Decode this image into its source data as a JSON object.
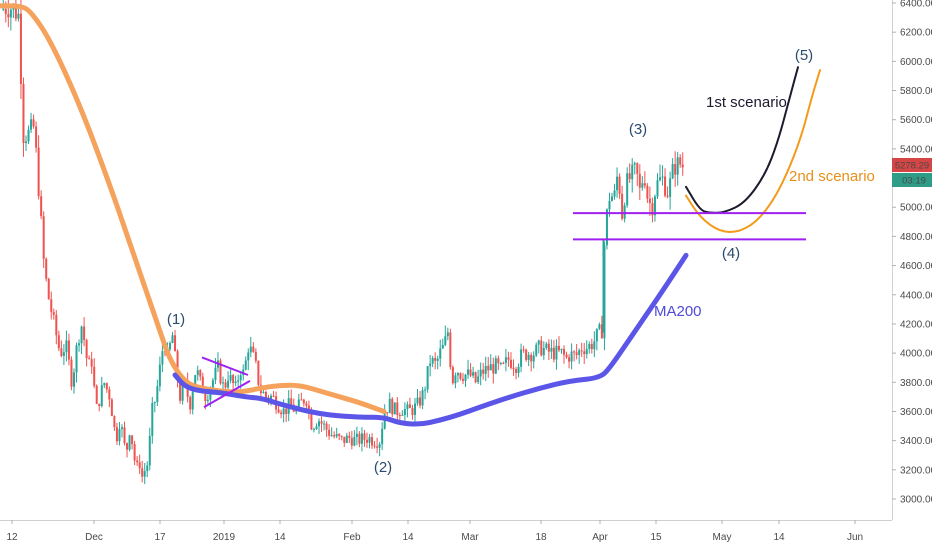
{
  "chart_data": {
    "type": "candlestick",
    "y_axis": {
      "ticks": [
        "6400.00",
        "6200.00",
        "6000.00",
        "5800.00",
        "5600.00",
        "5400.00",
        "5200.00",
        "5000.00",
        "4800.00",
        "4600.00",
        "4400.00",
        "4200.00",
        "4000.00",
        "3800.00",
        "3600.00",
        "3400.00",
        "3200.00",
        "3000.00"
      ],
      "range": [
        2900,
        6420
      ],
      "position": "right"
    },
    "x_axis": {
      "ticks": [
        "12",
        "Dec",
        "17",
        "2019",
        "14",
        "Feb",
        "14",
        "Mar",
        "18",
        "Apr",
        "15",
        "May",
        "14",
        "Jun"
      ]
    },
    "price_labels": {
      "last_price": "5278.29",
      "countdown": "03:19",
      "colors": {
        "last_price": "#d64545",
        "countdown": "#2e9c86"
      }
    },
    "wave_labels": [
      "(1)",
      "(2)",
      "(3)",
      "(4)",
      "(5)"
    ],
    "annotations": {
      "ma_label": "MA200",
      "scenario_1": "1st scenario",
      "scenario_2": "2nd scenario"
    },
    "levels": [
      4960,
      4780
    ],
    "candles": {
      "count": 270,
      "price_path": [
        [
          0,
          6350
        ],
        [
          8,
          6380
        ],
        [
          14,
          6360
        ],
        [
          20,
          6300
        ],
        [
          22,
          5500
        ],
        [
          28,
          5500
        ],
        [
          34,
          5550
        ],
        [
          38,
          5200
        ],
        [
          44,
          4600
        ],
        [
          48,
          4400
        ],
        [
          54,
          4200
        ],
        [
          60,
          4000
        ],
        [
          66,
          4050
        ],
        [
          72,
          3800
        ],
        [
          78,
          4100
        ],
        [
          82,
          4200
        ],
        [
          88,
          3900
        ],
        [
          92,
          3950
        ],
        [
          96,
          3600
        ],
        [
          104,
          3800
        ],
        [
          110,
          3700
        ],
        [
          116,
          3400
        ],
        [
          120,
          3550
        ],
        [
          126,
          3300
        ],
        [
          130,
          3500
        ],
        [
          136,
          3200
        ],
        [
          140,
          3250
        ],
        [
          142,
          3150
        ],
        [
          148,
          3250
        ],
        [
          152,
          3600
        ],
        [
          156,
          3700
        ],
        [
          160,
          3900
        ],
        [
          164,
          4100
        ],
        [
          168,
          3950
        ],
        [
          172,
          4150
        ],
        [
          176,
          3900
        ],
        [
          180,
          3700
        ],
        [
          184,
          3800
        ],
        [
          190,
          3650
        ],
        [
          196,
          3900
        ],
        [
          200,
          3800
        ],
        [
          206,
          3700
        ],
        [
          212,
          3800
        ],
        [
          218,
          3900
        ],
        [
          224,
          3750
        ],
        [
          228,
          3850
        ],
        [
          232,
          3800
        ],
        [
          236,
          3750
        ],
        [
          240,
          3900
        ],
        [
          244,
          3850
        ],
        [
          248,
          4050
        ],
        [
          252,
          4000
        ],
        [
          256,
          3900
        ],
        [
          260,
          3750
        ],
        [
          266,
          3700
        ],
        [
          272,
          3700
        ],
        [
          278,
          3650
        ],
        [
          284,
          3600
        ],
        [
          290,
          3650
        ],
        [
          296,
          3600
        ],
        [
          300,
          3650
        ],
        [
          306,
          3700
        ],
        [
          312,
          3500
        ],
        [
          318,
          3550
        ],
        [
          324,
          3500
        ],
        [
          330,
          3450
        ],
        [
          336,
          3420
        ],
        [
          342,
          3400
        ],
        [
          350,
          3420
        ],
        [
          356,
          3400
        ],
        [
          362,
          3410
        ],
        [
          368,
          3420
        ],
        [
          374,
          3400
        ],
        [
          380,
          3400
        ],
        [
          384,
          3600
        ],
        [
          390,
          3650
        ],
        [
          396,
          3600
        ],
        [
          402,
          3620
        ],
        [
          408,
          3600
        ],
        [
          414,
          3620
        ],
        [
          418,
          3650
        ],
        [
          422,
          3700
        ],
        [
          426,
          3800
        ],
        [
          430,
          3950
        ],
        [
          436,
          3920
        ],
        [
          440,
          4000
        ],
        [
          444,
          4050
        ],
        [
          448,
          4150
        ],
        [
          452,
          3800
        ],
        [
          456,
          3900
        ],
        [
          460,
          3860
        ],
        [
          466,
          3850
        ],
        [
          470,
          3850
        ],
        [
          476,
          3800
        ],
        [
          482,
          3870
        ],
        [
          490,
          3900
        ],
        [
          496,
          3910
        ],
        [
          502,
          3880
        ],
        [
          508,
          3960
        ],
        [
          516,
          3920
        ],
        [
          522,
          3990
        ],
        [
          528,
          4000
        ],
        [
          534,
          4000
        ],
        [
          540,
          4040
        ],
        [
          548,
          4010
        ],
        [
          556,
          4000
        ],
        [
          562,
          4000
        ],
        [
          566,
          3960
        ],
        [
          570,
          3990
        ],
        [
          576,
          3980
        ],
        [
          582,
          4040
        ],
        [
          588,
          4040
        ],
        [
          594,
          4080
        ],
        [
          598,
          4130
        ],
        [
          602,
          4160
        ],
        [
          604,
          4700
        ],
        [
          606,
          4900
        ],
        [
          610,
          5100
        ],
        [
          614,
          5050
        ],
        [
          618,
          5250
        ],
        [
          622,
          4950
        ],
        [
          626,
          5150
        ],
        [
          630,
          5200
        ],
        [
          636,
          5250
        ],
        [
          640,
          5100
        ],
        [
          644,
          5250
        ],
        [
          648,
          5050
        ],
        [
          652,
          5000
        ],
        [
          656,
          5150
        ],
        [
          662,
          5200
        ],
        [
          668,
          5100
        ],
        [
          674,
          5280
        ],
        [
          680,
          5300
        ],
        [
          684,
          5278
        ]
      ]
    },
    "series": [
      {
        "name": "",
        "color": "#f5a25d",
        "points": [
          [
            0,
            6380
          ],
          [
            20,
            6380
          ],
          [
            30,
            6350
          ],
          [
            50,
            6150
          ],
          [
            80,
            5700
          ],
          [
            110,
            5150
          ],
          [
            130,
            4750
          ],
          [
            150,
            4350
          ],
          [
            160,
            4150
          ],
          [
            170,
            3950
          ],
          [
            185,
            3800
          ],
          [
            200,
            3760
          ],
          [
            220,
            3740
          ],
          [
            240,
            3730
          ],
          [
            260,
            3760
          ],
          [
            280,
            3780
          ],
          [
            300,
            3780
          ],
          [
            320,
            3740
          ],
          [
            340,
            3700
          ],
          [
            360,
            3660
          ],
          [
            384,
            3600
          ]
        ]
      },
      {
        "name": "MA200",
        "color": "#5b55e8",
        "points": [
          [
            175,
            3850
          ],
          [
            185,
            3770
          ],
          [
            200,
            3740
          ],
          [
            220,
            3730
          ],
          [
            245,
            3700
          ],
          [
            262,
            3690
          ],
          [
            280,
            3650
          ],
          [
            320,
            3580
          ],
          [
            360,
            3560
          ],
          [
            384,
            3560
          ],
          [
            400,
            3520
          ],
          [
            420,
            3510
          ],
          [
            440,
            3540
          ],
          [
            460,
            3580
          ],
          [
            480,
            3630
          ],
          [
            510,
            3700
          ],
          [
            540,
            3760
          ],
          [
            570,
            3810
          ],
          [
            600,
            3830
          ],
          [
            610,
            3900
          ],
          [
            630,
            4100
          ],
          [
            660,
            4400
          ],
          [
            686,
            4670
          ]
        ]
      },
      {
        "name": "1st scenario",
        "color": "#1b1b30",
        "points": [
          [
            686,
            5140
          ],
          [
            700,
            4980
          ],
          [
            710,
            4960
          ],
          [
            725,
            4965
          ],
          [
            745,
            5030
          ],
          [
            765,
            5220
          ],
          [
            778,
            5450
          ],
          [
            790,
            5760
          ],
          [
            798,
            5960
          ]
        ]
      },
      {
        "name": "2nd scenario",
        "color": "#f39a1a",
        "points": [
          [
            686,
            5080
          ],
          [
            700,
            4930
          ],
          [
            720,
            4830
          ],
          [
            740,
            4830
          ],
          [
            760,
            4920
          ],
          [
            780,
            5120
          ],
          [
            800,
            5450
          ],
          [
            812,
            5760
          ],
          [
            820,
            5940
          ]
        ]
      }
    ],
    "purple_wedge": [
      [
        [
          202,
          3970
        ],
        [
          248,
          3850
        ]
      ],
      [
        [
          204,
          3630
        ],
        [
          250,
          3810
        ]
      ]
    ]
  }
}
